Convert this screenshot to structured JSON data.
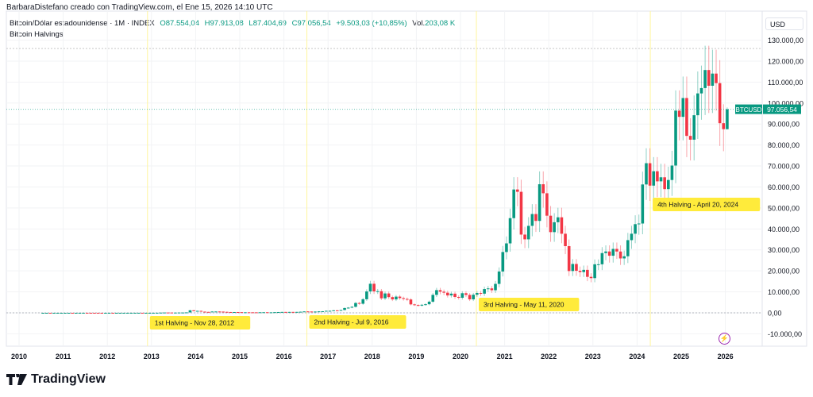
{
  "credit": "BarbaraDistefano creado con TradingView.com, el Ene 15, 2026 14:10 UTC",
  "legend": {
    "symbol": "Bitcoin/Dólar estadounidense · 1M · INDEX",
    "open": "O87.554,04",
    "high": "H97.913,08",
    "low": "L87.404,69",
    "close": "C97.056,54",
    "change": "+9.503,03 (+10,85%)",
    "vol_label": "Vol.",
    "vol": "203,08 K"
  },
  "indicator": "Bitcoin Halvings",
  "currency": "USD",
  "price_tag": {
    "symbol": "BTCUSD",
    "value": "97.056,54"
  },
  "brand": "TradingView",
  "icons": {
    "lightning": "lightning-icon",
    "logo": "tradingview-logo"
  },
  "colors": {
    "up": "#089981",
    "down": "#f23645",
    "halving": "#ffeb3b",
    "indicator_line": "#fff59d"
  },
  "chart_data": {
    "type": "candlestick",
    "interval": "1M",
    "y_ticks": [
      "-10.000,00",
      "0,00",
      "10.000,00",
      "20.000,00",
      "30.000,00",
      "40.000,00",
      "50.000,00",
      "60.000,00",
      "70.000,00",
      "80.000,00",
      "90.000,00",
      "100.000,00",
      "110.000,00",
      "120.000,00",
      "130.000,00"
    ],
    "y_tick_values": [
      -10000,
      0,
      10000,
      20000,
      30000,
      40000,
      50000,
      60000,
      70000,
      80000,
      90000,
      100000,
      110000,
      120000,
      130000
    ],
    "ylim": [
      -14000,
      134000
    ],
    "x_ticks": [
      "2010",
      "2011",
      "2012",
      "2013",
      "2014",
      "2015",
      "2016",
      "2017",
      "2018",
      "2019",
      "2020",
      "2021",
      "2022",
      "2023",
      "2024",
      "2025",
      "2026"
    ],
    "ath_line": 126000,
    "start": "2010-07",
    "monthly_closes": [
      0.07,
      0.07,
      0.06,
      0.2,
      0.2,
      0.3,
      0.5,
      0.9,
      0.8,
      3.5,
      8.7,
      16.1,
      13.4,
      8.2,
      5.1,
      3.2,
      3.0,
      4.7,
      5.5,
      4.9,
      4.9,
      5.0,
      5.2,
      6.7,
      9.1,
      10.2,
      12.4,
      11.2,
      12.6,
      13.5,
      20,
      33,
      93,
      139,
      129,
      97,
      106,
      135,
      141,
      211,
      1205,
      805,
      938,
      573,
      457,
      448,
      630,
      640,
      586,
      478,
      387,
      338,
      378,
      320,
      217,
      254,
      244,
      236,
      230,
      263,
      284,
      230,
      236,
      314,
      377,
      430,
      368,
      437,
      416,
      448,
      531,
      673,
      624,
      575,
      609,
      700,
      745,
      964,
      970,
      1190,
      1080,
      1350,
      2300,
      2480,
      2875,
      4700,
      4340,
      6470,
      10200,
      13860,
      10220,
      10330,
      6920,
      9240,
      7500,
      6400,
      7730,
      7030,
      6630,
      6370,
      4030,
      3740,
      3450,
      3850,
      4100,
      5320,
      8570,
      10820,
      10090,
      9600,
      8300,
      9150,
      7570,
      7190,
      9350,
      8540,
      6420,
      8630,
      9450,
      9140,
      11340,
      11650,
      10780,
      13800,
      19700,
      28990,
      33110,
      45140,
      58800,
      57700,
      37300,
      35040,
      41460,
      47100,
      43820,
      61300,
      57000,
      46300,
      38480,
      43190,
      45540,
      37710,
      31800,
      19930,
      23300,
      20050,
      19430,
      20490,
      17160,
      16550,
      23140,
      23150,
      28480,
      29250,
      27220,
      30480,
      29230,
      25940,
      26970,
      34650,
      37720,
      42280,
      42580,
      61200,
      71330,
      60640,
      67500,
      62680,
      64620,
      58970,
      63330,
      70220,
      96400,
      93430,
      102400,
      84350,
      82550,
      94200,
      104600,
      107150,
      115750,
      108250,
      114050,
      109500,
      90400,
      87554
    ],
    "last_candle": {
      "month": "2026-01",
      "open": 87554.04,
      "high": 97913.08,
      "low": 87404.69,
      "close": 97056.54
    },
    "halvings": [
      {
        "label": "1st Halving - Nov 28, 2012",
        "date": 2012.91
      },
      {
        "label": "2nd Halving - Jul 9, 2016",
        "date": 2016.52
      },
      {
        "label": "3rd Halving - May 11, 2020",
        "date": 2020.36
      },
      {
        "label": "4th Halving - April 20, 2024",
        "date": 2024.3
      }
    ]
  }
}
